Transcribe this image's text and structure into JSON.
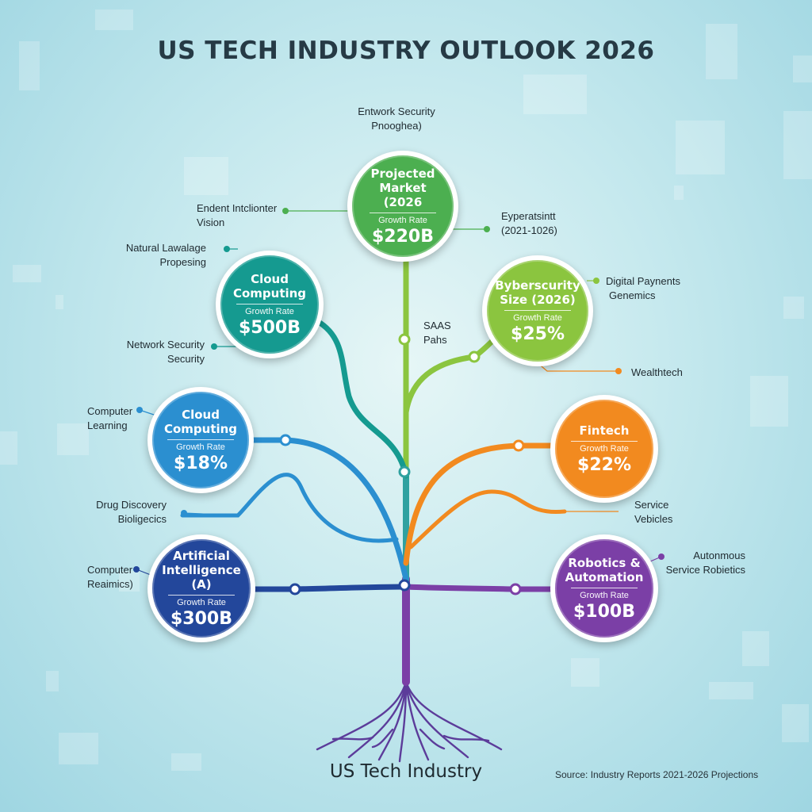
{
  "title": "US TECH INDUSTRY OUTLOOK 2026",
  "bottom_title": "US Tech Industry",
  "source": "Source: Industry Reports 2021-2026 Projections",
  "colors": {
    "green": "#4caf50",
    "teal": "#159a90",
    "lime": "#8bc53f",
    "blue": "#2b8fd0",
    "orange": "#f28a1f",
    "navy": "#23479b",
    "purple": "#7b3fa6"
  },
  "nodes": [
    {
      "id": "projected",
      "title": "Projected Market (2026",
      "sub": "Growth Rate",
      "value": "$220B",
      "color": "#4caf50"
    },
    {
      "id": "cloud-top",
      "title": "Cloud Computing",
      "sub": "Growth Rate",
      "value": "$500B",
      "color": "#159a90"
    },
    {
      "id": "cyber",
      "title": "Byberscurity Size (2026)",
      "sub": "Growth Rate",
      "value": "$25%",
      "color": "#8bc53f"
    },
    {
      "id": "cloud-mid",
      "title": "Cloud Computing",
      "sub": "Growth Rate",
      "value": "$18%",
      "color": "#2b8fd0"
    },
    {
      "id": "fintech",
      "title": "Fintech",
      "sub": "Growth Rate",
      "value": "$22%",
      "color": "#f28a1f"
    },
    {
      "id": "ai",
      "title": "Artificial Intelligence (A)",
      "sub": "Growth Rate",
      "value": "$300B",
      "color": "#23479b"
    },
    {
      "id": "robotics",
      "title": "Robotics & Automation",
      "sub": "Growth Rate",
      "value": "$100B",
      "color": "#7b3fa6"
    }
  ],
  "labels": [
    {
      "id": "top",
      "lines": [
        "Entwork Security",
        "Pnooghea)"
      ]
    },
    {
      "id": "expert-vision",
      "lines": [
        "Endent Intclionter",
        "Vision"
      ]
    },
    {
      "id": "expected",
      "lines": [
        "Eyperatsintt",
        "(2021-1026)"
      ]
    },
    {
      "id": "nlp",
      "lines": [
        "Natural Lawalage",
        "Propesing"
      ]
    },
    {
      "id": "digital",
      "lines": [
        "Digital Paynents",
        "Genemics"
      ]
    },
    {
      "id": "saas",
      "lines": [
        "SAAS",
        "Pahs"
      ]
    },
    {
      "id": "netsec",
      "lines": [
        "Network Security",
        "Security"
      ]
    },
    {
      "id": "wealth",
      "lines": [
        "Wealthtech"
      ]
    },
    {
      "id": "complearn",
      "lines": [
        "Computer",
        "Learning"
      ]
    },
    {
      "id": "drug",
      "lines": [
        "Drug Discovery",
        "Bioligecics"
      ]
    },
    {
      "id": "service",
      "lines": [
        "Service",
        "Vebicles"
      ]
    },
    {
      "id": "autonomous",
      "lines": [
        "Autonmous",
        "Service Robietics"
      ]
    },
    {
      "id": "comprob",
      "lines": [
        "Computer",
        "Reaimics)"
      ]
    }
  ]
}
